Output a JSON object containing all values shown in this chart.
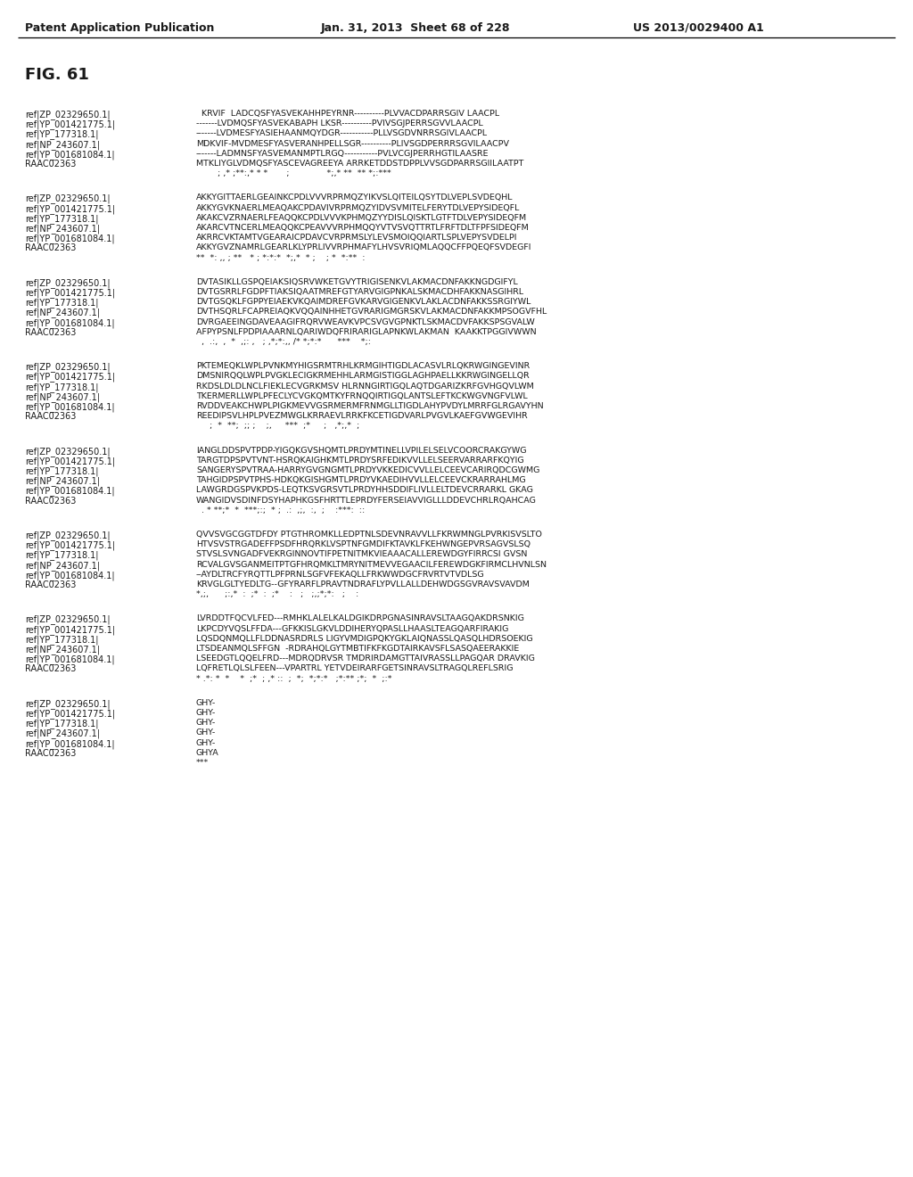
{
  "header_left": "Patent Application Publication",
  "header_middle": "Jan. 31, 2013  Sheet 68 of 228",
  "header_right": "US 2013/0029400 A1",
  "fig_label": "FIG. 61",
  "background_color": "#ffffff",
  "text_color": "#1a1a1a",
  "alignment_blocks": [
    {
      "sequences": [
        [
          "ref|ZP_02329650.1|",
          "  KRVIF  LADCQSFYASVEKAHHPEYRNR----------PLVVACDPARRSGIV LAACPL"
        ],
        [
          "ref|YP_001421775.1|",
          "-------LVDMQSFYASVEKABAPH LKSR----------PVIVSGJPERRSGVVLAACPL"
        ],
        [
          "ref|YP_177318.1|",
          "-------LVDMESFYASIEHAANMQYDGR-----------PLLVSGDVNRRSGIVLAACPL"
        ],
        [
          "ref|NP_243607.1|",
          "MDKVIF-MVDMESFYASVERANHPELLSGR----------PLIVSGDPERRRSGVILAACPV"
        ],
        [
          "ref|YP_001681084.1|",
          "-------LADMNSFYASVEMANMPTLRGQ-----------PVLVCGJPERRHGTILAASRE"
        ],
        [
          "RAAC02363",
          "MTKLIYGLVDMQSFYASCEVAGREEYA ARRKETDDSTDPPLVVSGDPARRSGIILAATPT"
        ],
        [
          "",
          "        ; ,* ;**:,* * *       ;              *;,* **  ** *;:***"
        ]
      ]
    },
    {
      "sequences": [
        [
          "ref|ZP_02329650.1|",
          "AKKYGITTAERLGEAINKCPDLVVVRPRMQZYIKVSLQITEILQSYTDLVEPLSVDEQHL"
        ],
        [
          "ref|YP_001421775.1|",
          "AKKYGVKNAERLMEAQAKCPDAVIVRPRMQZYIDVSVMITELFERYTDLVEPYSIDEQFL"
        ],
        [
          "ref|YP_177318.1|",
          "AKAKCVZRNAERLFEAQQKCPDLVVVKPHMQZYYDISLQISKTLGTFTDLVEPYSIDEQFM"
        ],
        [
          "ref|NP_243607.1|",
          "AKARCVTNCERLMEAQQKCPEAVVVRPHMQQYVTVSVQTTRTLFRFTDLTFPFSIDEQFM"
        ],
        [
          "ref|YP_001681084.1|",
          "AKRRCVKTAMTVGEARAICPDAVCVRPRMSLYLEVSMOIQQIARTLSPLVEPYSVDELPI"
        ],
        [
          "RAAC02363",
          "AKKYGVZNAMRLGEARLKLYPRLIVVRPHMAFYLHVSVRIQMLAQQCFFPQEQFSVDEGFI"
        ],
        [
          "",
          "**  *: ,, ; **   * ; *:*:*  *;,*  * ;    ; *  *:**  :"
        ]
      ]
    },
    {
      "sequences": [
        [
          "ref|ZP_02329650.1|",
          "DVTASIKLLGSPQEIAKSIQSRVWKETGVYTRIGISENKVLAKMACDNFAKKNGDGIFYL"
        ],
        [
          "ref|YP_001421775.1|",
          "DVTGSRRLFGDPFTIAKSIQAATMREFGTYARVGIGPNKALSKMACDHFAKKNASGIHRL"
        ],
        [
          "ref|YP_177318.1|",
          "DVTGSQKLFGPPYEIAEKVKQAIMDREFGVKARVGIGENKVLAKLACDNFAKKSSRGIYWL"
        ],
        [
          "ref|NP_243607.1|",
          "DVTHSQRLFCAPREIAQKVQQAINHHETGVRARIGMGRSKVLAKMACDNFAKKMPSOGVFHL"
        ],
        [
          "ref|YP_001681084.1|",
          "DVRGAEEINGDAVEAAGIFRQRVWEAVKVPCSVGVGPNKTLSKMACDVFAKKSPSGVALW"
        ],
        [
          "RAAC02363",
          "AFPYPSNLFPDPIAAARNLQARIWDQFRIRARIGLAPNKWLAKMAN  KAAKKTPGGIVWWN"
        ],
        [
          "",
          "  ,  .:,  ,  *  ,;: ,   ; ,*;*:,, /* *;*:*      ***    *;:"
        ]
      ]
    },
    {
      "sequences": [
        [
          "ref|ZP_02329650.1|",
          "PKTEMEQKLWPLPVNKMYHIGSRMTRHLKRMGIHTIGDLACASVLRLQKRWGINGEVINR"
        ],
        [
          "ref|YP_001421775.1|",
          "DMSNIRQQLWPLPVGKLECIGKRMEHHLARMGISTIGGLAGHPAELLKKRWGINGELLQR"
        ],
        [
          "ref|YP_177318.1|",
          "RKDSLDLDLNCLFIEKLECVGRKMSV HLRNNGIRTIGQLAQTDGARIZKRFGVHGQVLWM"
        ],
        [
          "ref|NP_243607.1|",
          "TKERMERLLWPLPFECLYCVGKQMTKYFRNQQIRTIGQLANTSLEFTKCKWGVNGFVLWL"
        ],
        [
          "ref|YP_001681084.1|",
          "RVDDVEAKCHWPLPIGKMEVVGSRMERMFRNMGLLTIGDLAHYPVDYLMRRFGLRGAVYHN"
        ],
        [
          "RAAC02363",
          "REEDIPSVLHPLPVEZMWGLKRRAEVLRRKFKCETIGDVARLPVGVLKAEFGVWGEVIHR"
        ],
        [
          "",
          "     ;  *  **;  ;; ;    ;,     ***  ;*     ;   ,*;,*  ;"
        ]
      ]
    },
    {
      "sequences": [
        [
          "ref|ZP_02329650.1|",
          "IANGLDDSPVTPDP-YIGQKGVSHQMTLPRDYMTINELLVPILELSELVCOORCRAKGYWG"
        ],
        [
          "ref|YP_001421775.1|",
          "TARGTDPSPVTVNT-HSRQKAIGHKMTLPRDYSRFEDIKVVLLELSEERVARRARFKQYIG"
        ],
        [
          "ref|YP_177318.1|",
          "SANGERYSPVTRAA-HARRYGVGNGMTLPRDYVKKEDICVVLLELCEEVCARIRQDCGWMG"
        ],
        [
          "ref|NP_243607.1|",
          "TAHGIDPSPVTPHS-HDKQKGISHGMTLPRDYVKAEDIHVVLLELCEEVCKRARRAHLMG"
        ],
        [
          "ref|YP_001681084.1|",
          "LAWGRDGSPVKPDS-LEQTKSVGRSVTLPRDYHHSDDIFLIVLLELTDEVCRRARKL GKAG"
        ],
        [
          "RAAC02363",
          "WANGIDVSDINFDSYHAPHKGSFHRTTLEPRDYFERSEIAVVIGLLLDDEVCHRLRQAHCAG"
        ],
        [
          "",
          "  . * **;*  *  ***;:;  * ;  .:  ,;,  :,  ;    :***:  ::"
        ]
      ]
    },
    {
      "sequences": [
        [
          "ref|ZP_02329650.1|",
          "QVVSVGCGGTDFDY PTGTHROMKLLEDPTNLSDEVNRAVVLLFKRWMNGLPVRKISVSLTO"
        ],
        [
          "ref|YP_001421775.1|",
          "HTVSVSTRGADEFFPSDFHRQRKLVSPTNFGMDIFKTAVKLFKEHWNGEPVRSAGVSLSQ"
        ],
        [
          "ref|YP_177318.1|",
          "STVSLSVNGADFVEKRGINNOVTIFPETNITMKVIEAAACALLEREWDGYFIRRCSI GVSN"
        ],
        [
          "ref|NP_243607.1|",
          "RCVALGVSGANMEITPTGFHRQMKLTMRYNITMEVVEGAACILFEREWDGKFIRMCLHVNLSN"
        ],
        [
          "ref|YP_001681084.1|",
          "--AYDLTRCFYRQTTLPFPRNLSGFVFEKAQLLFRKWWDGCFRVRTVTVDLSG"
        ],
        [
          "RAAC02363",
          "KRVGLGLTYEDLTG--GFYRARFLPRAVTNDRAFLYPVLLALLDEHWDGSGVRAVSVAVDM"
        ],
        [
          "",
          "*,;,      ;:,*  :  ;*  :  ;*    :   ;   ;,;*;*:   ;    :"
        ]
      ]
    },
    {
      "sequences": [
        [
          "ref|ZP_02329650.1|",
          "LVRDDTFQCVLFED---RMHKLALELKALDGIKDRPGNASINRAVSLTAAGQAKDRSNKIG"
        ],
        [
          "ref|YP_001421775.1|",
          "LKPCDYVQSLFFDA---GFKKISLGKVLDDIHERYQPASLLHAASLTEAGQARFIRAKIG"
        ],
        [
          "ref|YP_177318.1|",
          "LQSDQNMQLLFLDDNASRDRLS LIGYVMDIGPQKYGKLAIQNASSLQASQLHDRSOEKIG"
        ],
        [
          "ref|NP_243607.1|",
          "LTSDEANMQLSFFGN  -RDRAHQLGYTMBTIFKFKGDTAIRKAVSFLSASQAEERAKKIE"
        ],
        [
          "ref|YP_001681084.1|",
          "LSEEDGTLQQELFRD---MDRQDRVSR TMDRIRDAMGTTAIVRASSLLPAGQAR DRAVKIG"
        ],
        [
          "RAAC02363",
          "LQFRETLQLSLFEEN---VPARTRL YETVDEIRARFGETSINRAVSLTRAGQLREFLSRIG"
        ],
        [
          "",
          "* .*: *  *    *  ;*  ; ,* ::  ;  *;  *;*:*   ;*:** ;*;  *  ;:*"
        ]
      ]
    },
    {
      "sequences": [
        [
          "ref|ZP_02329650.1|",
          "GHY-"
        ],
        [
          "ref|YP_001421775.1|",
          "GHY-"
        ],
        [
          "ref|YP_177318.1|",
          "GHY-"
        ],
        [
          "ref|NP_243607.1|",
          "GHY-"
        ],
        [
          "ref|YP_001681084.1|",
          "GHY-"
        ],
        [
          "RAAC02363",
          "GHYA"
        ],
        [
          "",
          "***"
        ]
      ]
    }
  ]
}
